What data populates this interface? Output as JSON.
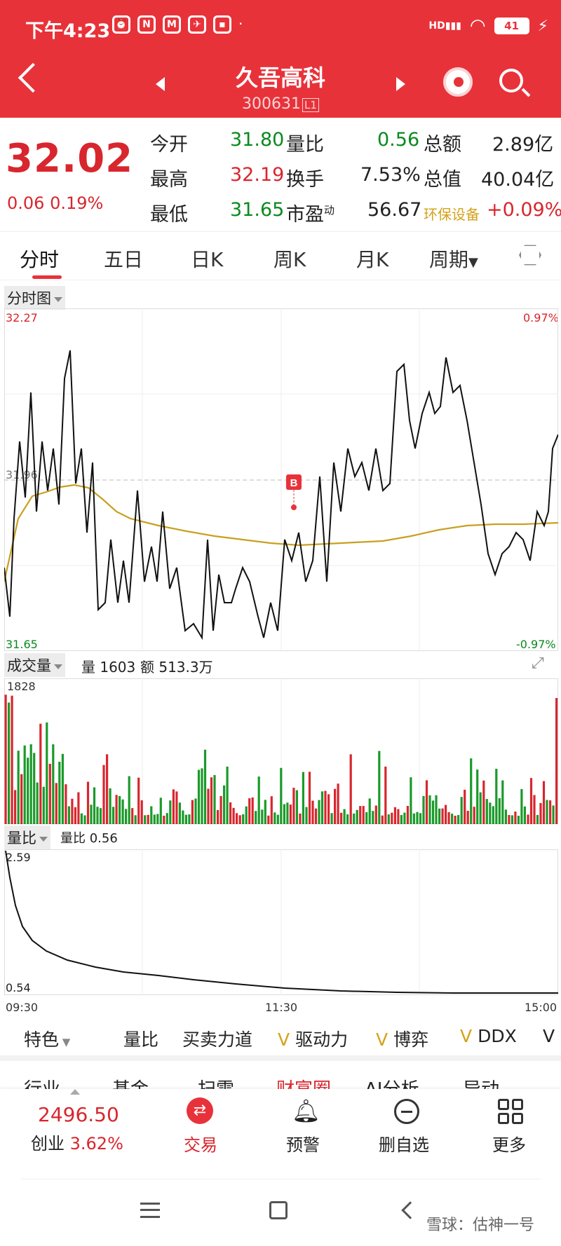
{
  "status": {
    "time": "下午4:23",
    "battery": "41",
    "network": "HD"
  },
  "header": {
    "title": "久吾高科",
    "code": "300631",
    "level": "L1"
  },
  "quote": {
    "price": "32.02",
    "change": "0.06",
    "change_pct": "0.19%",
    "rows": [
      {
        "l1": "今开",
        "v1": "31.80",
        "l2": "量比",
        "v2": "0.56",
        "l3": "总额",
        "v3": "2.89亿"
      },
      {
        "l1": "最高",
        "v1": "32.19",
        "l2": "换手",
        "v2": "7.53%",
        "l3": "总值",
        "v3": "40.04亿"
      },
      {
        "l1": "最低",
        "v1": "31.65",
        "l2": "市盈",
        "l2sup": "动",
        "v2": "56.67",
        "l3": "环保设备",
        "v3": "+0.09%"
      }
    ]
  },
  "tabs": [
    "分时",
    "五日",
    "日K",
    "周K",
    "月K",
    "周期"
  ],
  "chart": {
    "type_label": "分时图",
    "y_top": "32.27",
    "y_mid": "31.96",
    "y_bottom": "31.65",
    "pct_top": "0.97%",
    "pct_bottom": "-0.97%",
    "marker": "B"
  },
  "volume": {
    "label": "成交量",
    "qty_label": "量 1603",
    "amount_label": "额 513.3万",
    "max": "1828"
  },
  "ratio": {
    "label": "量比",
    "value_label": "量比 0.56",
    "top": "2.59",
    "bottom": "0.54"
  },
  "x_axis": {
    "start": "09:30",
    "mid": "11:30",
    "end": "15:00"
  },
  "feature_tabs": [
    "特色",
    "量比",
    "买卖力道",
    "驱动力",
    "博弈",
    "DDX"
  ],
  "bottom_tabs": [
    "行业",
    "基金",
    "扫雷",
    "财富圈",
    "AI分析",
    "异动"
  ],
  "nav": {
    "index_value": "2496.50",
    "index_name": "创业",
    "index_pct": "3.62%",
    "items": [
      "交易",
      "预警",
      "删自选",
      "更多"
    ]
  },
  "watermark": "雪球：估神一号"
}
